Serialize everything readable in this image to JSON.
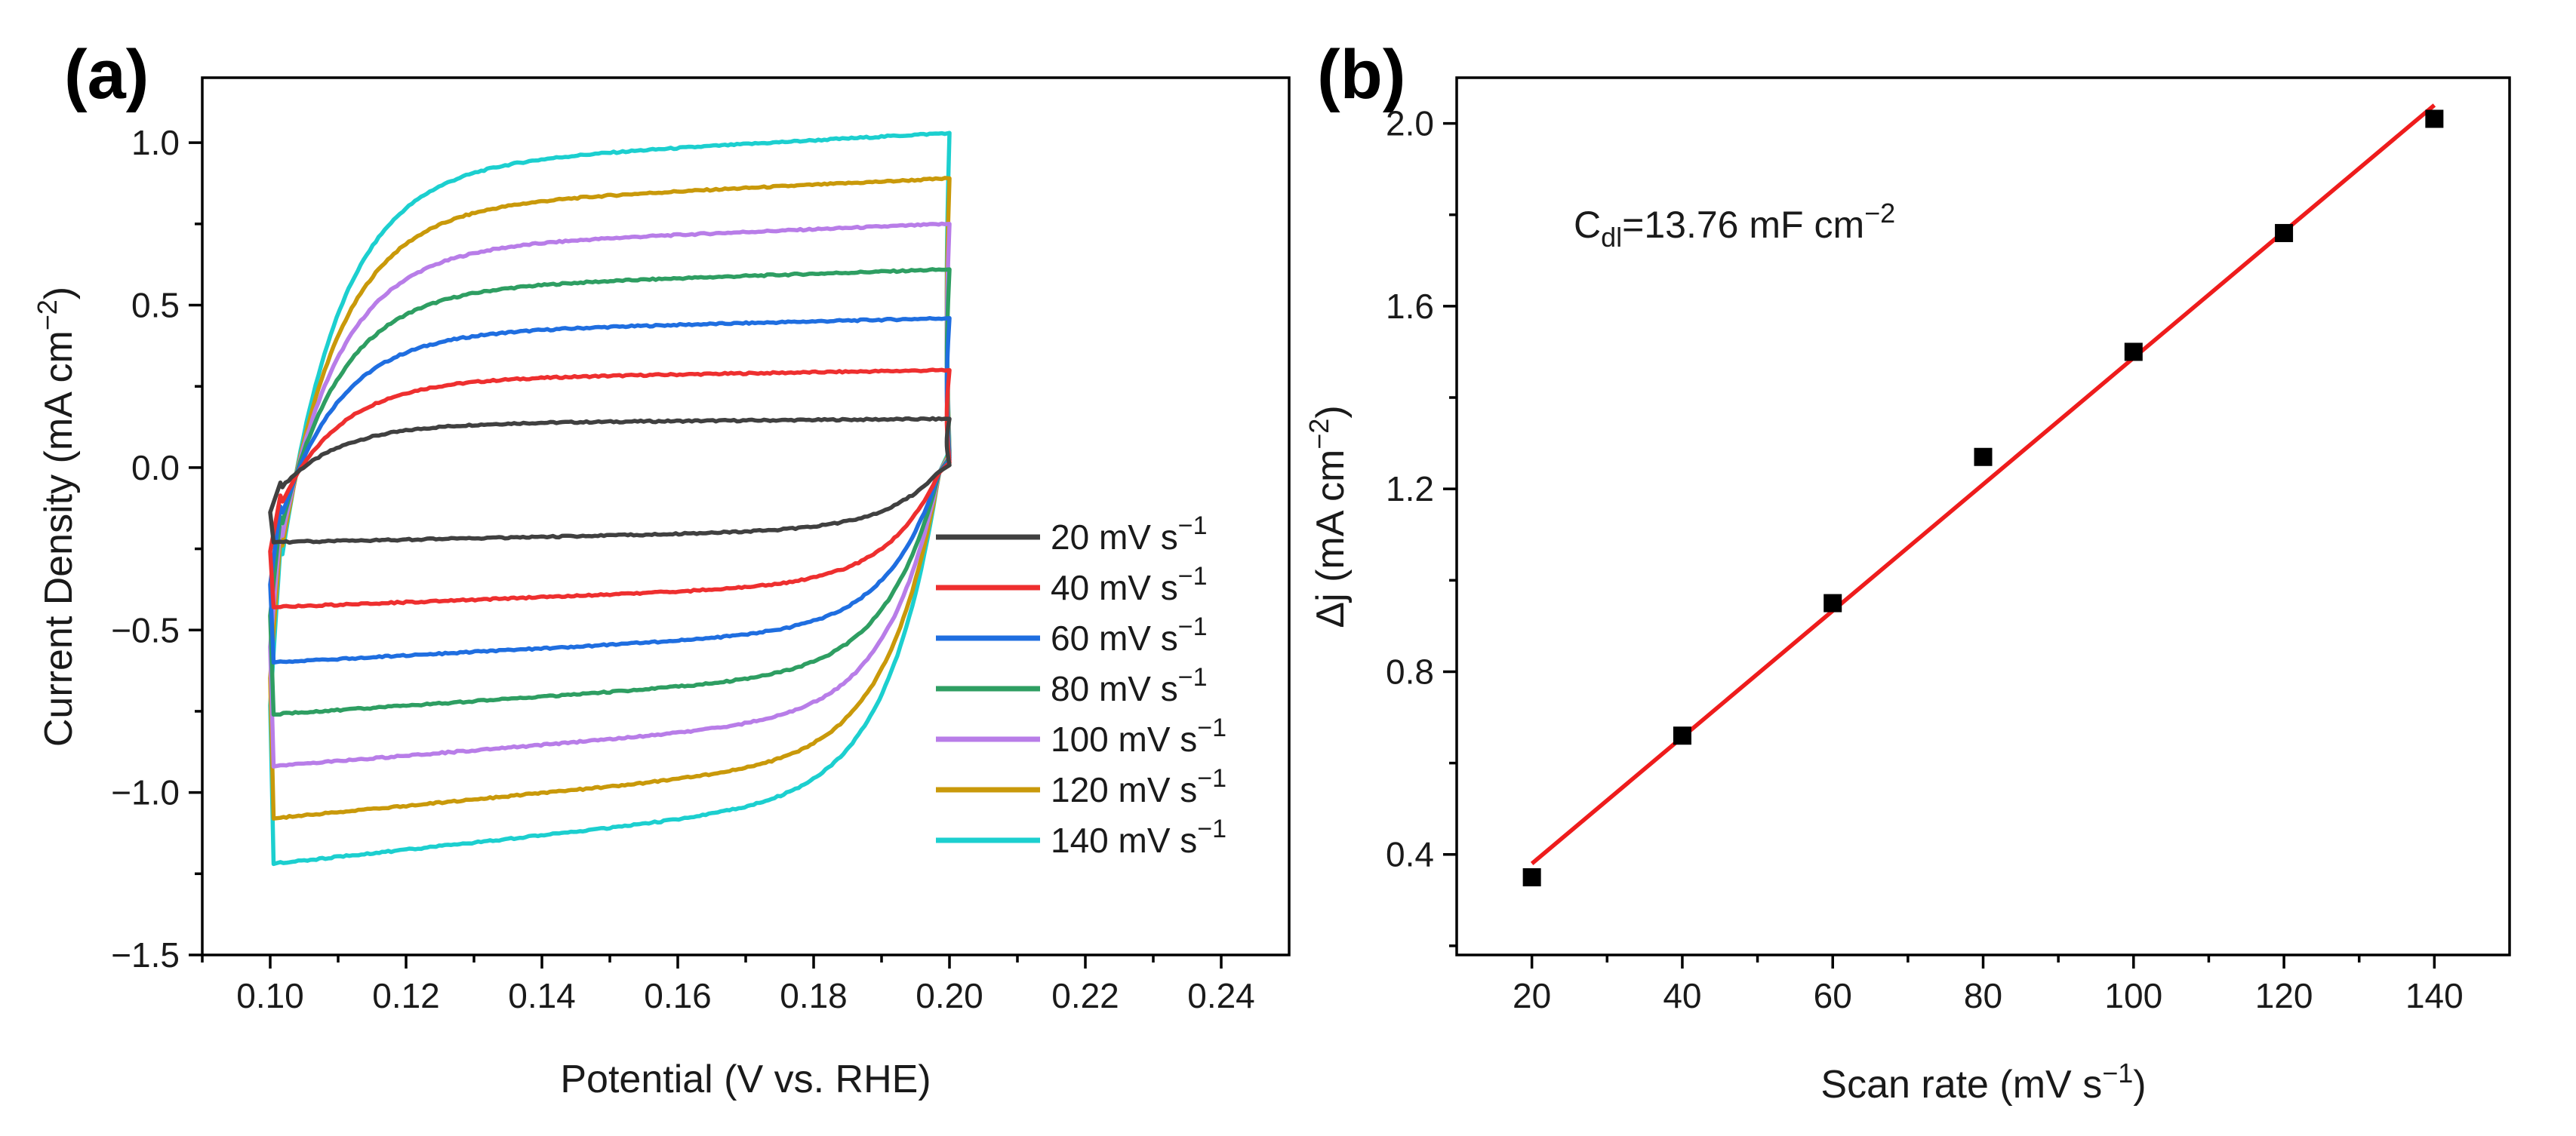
{
  "chart_data": [
    {
      "type": "line",
      "panel_label": "(a)",
      "xlabel": "Potential (V vs. RHE)",
      "ylabel": "Current Density (mA cm",
      "ylabel_sup": "−2",
      "ylabel_close": ")",
      "xlim": [
        0.09,
        0.25
      ],
      "ylim": [
        -1.5,
        1.2
      ],
      "xticks": [
        0.1,
        0.12,
        0.14,
        0.16,
        0.18,
        0.2,
        0.22,
        0.24
      ],
      "xtick_labels": [
        "0.10",
        "0.12",
        "0.14",
        "0.16",
        "0.18",
        "0.20",
        "0.22",
        "0.24"
      ],
      "yticks": [
        -1.5,
        -1.0,
        -0.5,
        0.0,
        0.5,
        1.0
      ],
      "ytick_labels": [
        "−1.5",
        "−1.0",
        "−0.5",
        "0.0",
        "0.5",
        "1.0"
      ],
      "grid": false,
      "legend_position": "bottom-right",
      "potential_window": [
        0.1,
        0.2
      ],
      "series": [
        {
          "name": "20 mV s",
          "sup": "−1",
          "color": "#404040",
          "anodic_plateau": 0.15,
          "cathodic_plateau": -0.23
        },
        {
          "name": "40 mV s",
          "sup": "−1",
          "color": "#ee2f2f",
          "anodic_plateau": 0.3,
          "cathodic_plateau": -0.43
        },
        {
          "name": "60 mV s",
          "sup": "−1",
          "color": "#1f6ee0",
          "anodic_plateau": 0.46,
          "cathodic_plateau": -0.6
        },
        {
          "name": "80 mV s",
          "sup": "−1",
          "color": "#2e9e62",
          "anodic_plateau": 0.61,
          "cathodic_plateau": -0.76
        },
        {
          "name": "100 mV s",
          "sup": "−1",
          "color": "#b87de8",
          "anodic_plateau": 0.75,
          "cathodic_plateau": -0.92
        },
        {
          "name": "120 mV s",
          "sup": "−1",
          "color": "#c9990a",
          "anodic_plateau": 0.89,
          "cathodic_plateau": -1.08
        },
        {
          "name": "140 mV s",
          "sup": "−1",
          "color": "#1ccfcf",
          "anodic_plateau": 1.03,
          "cathodic_plateau": -1.22
        }
      ]
    },
    {
      "type": "scatter",
      "panel_label": "(b)",
      "xlabel": "Scan rate (mV s",
      "xlabel_sup": "−1",
      "xlabel_close": ")",
      "ylabel": "Δj (mA cm",
      "ylabel_sup": "−2",
      "ylabel_close": ")",
      "xlim": [
        10,
        150
      ],
      "ylim": [
        0.18,
        2.1
      ],
      "xticks": [
        20,
        40,
        60,
        80,
        100,
        120,
        140
      ],
      "xtick_labels": [
        "20",
        "40",
        "60",
        "80",
        "100",
        "120",
        "140"
      ],
      "yticks": [
        0.4,
        0.8,
        1.2,
        1.6,
        2.0
      ],
      "ytick_labels": [
        "0.4",
        "0.8",
        "1.2",
        "1.6",
        "2.0"
      ],
      "grid": false,
      "points": {
        "x": [
          20,
          40,
          60,
          80,
          100,
          120,
          140
        ],
        "y": [
          0.35,
          0.66,
          0.95,
          1.27,
          1.5,
          1.76,
          2.01
        ],
        "color": "#000000",
        "marker": "square"
      },
      "fit": {
        "x": [
          20,
          140
        ],
        "y": [
          0.38,
          2.04
        ],
        "color": "#ee1c1c"
      },
      "annotation": {
        "prefix": "C",
        "sub": "dl",
        "text": "=13.76 mF cm",
        "sup": "−2",
        "position": "top-left"
      }
    }
  ]
}
